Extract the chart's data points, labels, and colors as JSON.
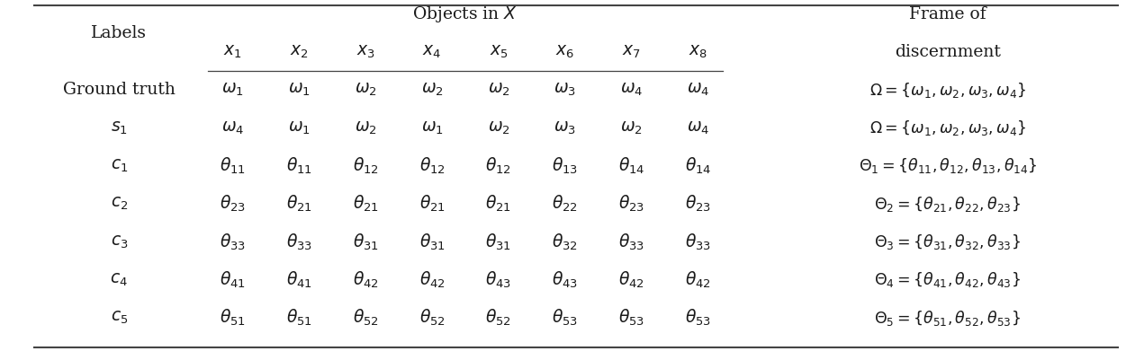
{
  "col_header_top": "Objects in $X$",
  "col_header_left": "Labels",
  "x_labels": [
    "$x_1$",
    "$x_2$",
    "$x_3$",
    "$x_4$",
    "$x_5$",
    "$x_6$",
    "$x_7$",
    "$x_8$"
  ],
  "row_labels": [
    "Ground truth",
    "$s_1$",
    "$c_1$",
    "$c_2$",
    "$c_3$",
    "$c_4$",
    "$c_5$"
  ],
  "table_data": [
    [
      "$\\omega_1$",
      "$\\omega_1$",
      "$\\omega_2$",
      "$\\omega_2$",
      "$\\omega_2$",
      "$\\omega_3$",
      "$\\omega_4$",
      "$\\omega_4$"
    ],
    [
      "$\\omega_4$",
      "$\\omega_1$",
      "$\\omega_2$",
      "$\\omega_1$",
      "$\\omega_2$",
      "$\\omega_3$",
      "$\\omega_2$",
      "$\\omega_4$"
    ],
    [
      "$\\theta_{11}$",
      "$\\theta_{11}$",
      "$\\theta_{12}$",
      "$\\theta_{12}$",
      "$\\theta_{12}$",
      "$\\theta_{13}$",
      "$\\theta_{14}$",
      "$\\theta_{14}$"
    ],
    [
      "$\\theta_{23}$",
      "$\\theta_{21}$",
      "$\\theta_{21}$",
      "$\\theta_{21}$",
      "$\\theta_{21}$",
      "$\\theta_{22}$",
      "$\\theta_{23}$",
      "$\\theta_{23}$"
    ],
    [
      "$\\theta_{33}$",
      "$\\theta_{33}$",
      "$\\theta_{31}$",
      "$\\theta_{31}$",
      "$\\theta_{31}$",
      "$\\theta_{32}$",
      "$\\theta_{33}$",
      "$\\theta_{33}$"
    ],
    [
      "$\\theta_{41}$",
      "$\\theta_{41}$",
      "$\\theta_{42}$",
      "$\\theta_{42}$",
      "$\\theta_{43}$",
      "$\\theta_{43}$",
      "$\\theta_{42}$",
      "$\\theta_{42}$"
    ],
    [
      "$\\theta_{51}$",
      "$\\theta_{51}$",
      "$\\theta_{52}$",
      "$\\theta_{52}$",
      "$\\theta_{52}$",
      "$\\theta_{53}$",
      "$\\theta_{53}$",
      "$\\theta_{53}$"
    ]
  ],
  "frame_data": [
    "$\\Omega = \\{\\omega_1, \\omega_2, \\omega_3, \\omega_4\\}$",
    "$\\Omega = \\{\\omega_1, \\omega_2, \\omega_3, \\omega_4\\}$",
    "$\\Theta_1 = \\{\\theta_{11}, \\theta_{12}, \\theta_{13}, \\theta_{14}\\}$",
    "$\\Theta_2 = \\{\\theta_{21}, \\theta_{22}, \\theta_{23}\\}$",
    "$\\Theta_3 = \\{\\theta_{31}, \\theta_{32}, \\theta_{33}\\}$",
    "$\\Theta_4 = \\{\\theta_{41}, \\theta_{42}, \\theta_{43}\\}$",
    "$\\Theta_5 = \\{\\theta_{51}, \\theta_{52}, \\theta_{53}\\}$"
  ],
  "background_color": "#ffffff",
  "text_color": "#1a1a1a",
  "line_color": "#444444",
  "fontsize": 13.5,
  "frame_fontsize": 12.5
}
